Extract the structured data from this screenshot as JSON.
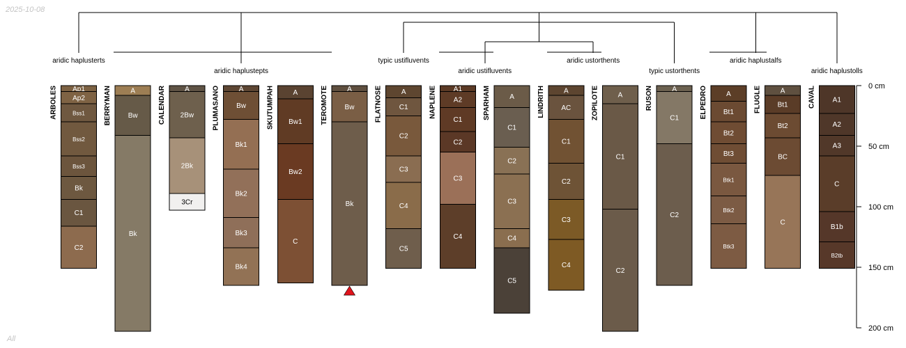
{
  "header": {
    "date": "2025-10-08"
  },
  "footer": {
    "subset": "All"
  },
  "chart_data": {
    "type": "soil-profile-sketch",
    "depth_units": "cm",
    "depth_axis": {
      "ticks": [
        0,
        50,
        100,
        150,
        200
      ],
      "labels": [
        "0 cm",
        "50 cm",
        "100 cm",
        "150 cm",
        "200 cm"
      ],
      "range": [
        0,
        200
      ]
    },
    "groups": [
      {
        "label": "aridic haplusterts",
        "profiles": [
          "ARBOLES"
        ]
      },
      {
        "label": "aridic haplustepts",
        "profiles": [
          "BERRYMAN",
          "CALENDAR",
          "PLUMASANO",
          "SKUTUMPAH",
          "TEROMOTE"
        ]
      },
      {
        "label": "typic ustifluvents",
        "profiles": [
          "FLATNOSE"
        ]
      },
      {
        "label": "aridic ustifluvents",
        "profiles": [
          "NAPLENE",
          "SPARHAM"
        ]
      },
      {
        "label": "aridic ustorthents",
        "profiles": [
          "LINDRITH",
          "ZOPILOTE"
        ]
      },
      {
        "label": "typic ustorthents",
        "profiles": [
          "RUSON"
        ]
      },
      {
        "label": "aridic haplustalfs",
        "profiles": [
          "ELPEDRO",
          "FLUGLE"
        ]
      },
      {
        "label": "aridic haplustolls",
        "profiles": [
          "CAVAL"
        ]
      }
    ],
    "profiles": [
      {
        "name": "ARBOLES",
        "horizons": [
          {
            "name": "Ap1",
            "top": 0,
            "bottom": 5,
            "color": "#7d6243",
            "small": false
          },
          {
            "name": "Ap2",
            "top": 5,
            "bottom": 15,
            "color": "#7f6344",
            "small": false
          },
          {
            "name": "Bss1",
            "top": 15,
            "bottom": 30,
            "color": "#6f5840",
            "small": true
          },
          {
            "name": "Bss2",
            "top": 30,
            "bottom": 58,
            "color": "#71593f",
            "small": true
          },
          {
            "name": "Bss3",
            "top": 58,
            "bottom": 75,
            "color": "#6c553d",
            "small": true
          },
          {
            "name": "Bk",
            "top": 75,
            "bottom": 94,
            "color": "#6d5840",
            "small": false
          },
          {
            "name": "C1",
            "top": 94,
            "bottom": 116,
            "color": "#6a5640",
            "small": false
          },
          {
            "name": "C2",
            "top": 116,
            "bottom": 151,
            "color": "#8d6b4e",
            "small": false
          }
        ]
      },
      {
        "name": "BERRYMAN",
        "horizons": [
          {
            "name": "A",
            "top": 0,
            "bottom": 8,
            "color": "#9d7e54",
            "small": false
          },
          {
            "name": "Bw",
            "top": 8,
            "bottom": 41,
            "color": "#665a48",
            "small": false
          },
          {
            "name": "Bk",
            "top": 41,
            "bottom": 203,
            "color": "#857a66",
            "small": false
          }
        ]
      },
      {
        "name": "CALENDAR",
        "horizons": [
          {
            "name": "A",
            "top": 0,
            "bottom": 5,
            "color": "#5f5345",
            "small": false
          },
          {
            "name": "2Bw",
            "top": 5,
            "bottom": 43,
            "color": "#6e604d",
            "small": false
          },
          {
            "name": "2Bk",
            "top": 43,
            "bottom": 89,
            "color": "#a79179",
            "small": false
          },
          {
            "name": "3Cr",
            "top": 89,
            "bottom": 103,
            "color": "#f1f0ef",
            "small": false
          }
        ]
      },
      {
        "name": "PLUMASANO",
        "horizons": [
          {
            "name": "A",
            "top": 0,
            "bottom": 5,
            "color": "#5d4633",
            "small": false
          },
          {
            "name": "Bw",
            "top": 5,
            "bottom": 28,
            "color": "#6e4f35",
            "small": false
          },
          {
            "name": "Bk1",
            "top": 28,
            "bottom": 69,
            "color": "#946f53",
            "small": false
          },
          {
            "name": "Bk2",
            "top": 69,
            "bottom": 109,
            "color": "#927059",
            "small": false
          },
          {
            "name": "Bk3",
            "top": 109,
            "bottom": 134,
            "color": "#8f6f59",
            "small": false
          },
          {
            "name": "Bk4",
            "top": 134,
            "bottom": 165,
            "color": "#927255",
            "small": false
          }
        ]
      },
      {
        "name": "SKUTUMPAH",
        "horizons": [
          {
            "name": "A",
            "top": 0,
            "bottom": 11,
            "color": "#5a4331",
            "small": false
          },
          {
            "name": "Bw1",
            "top": 11,
            "bottom": 48,
            "color": "#603b24",
            "small": false
          },
          {
            "name": "Bw2",
            "top": 48,
            "bottom": 94,
            "color": "#6a3a22",
            "small": false
          },
          {
            "name": "C",
            "top": 94,
            "bottom": 163,
            "color": "#7d5034",
            "small": false
          }
        ]
      },
      {
        "name": "TEROMOTE",
        "bottom_marker": true,
        "horizons": [
          {
            "name": "A",
            "top": 0,
            "bottom": 5,
            "color": "#5f4f3f",
            "small": false
          },
          {
            "name": "Bw",
            "top": 5,
            "bottom": 30,
            "color": "#7a5e45",
            "small": false
          },
          {
            "name": "Bk",
            "top": 30,
            "bottom": 165,
            "color": "#6e5d4b",
            "small": false
          }
        ]
      },
      {
        "name": "FLATNOSE",
        "horizons": [
          {
            "name": "A",
            "top": 0,
            "bottom": 10,
            "color": "#5e4630",
            "small": false
          },
          {
            "name": "C1",
            "top": 10,
            "bottom": 25,
            "color": "#6f563f",
            "small": false
          },
          {
            "name": "C2",
            "top": 25,
            "bottom": 58,
            "color": "#79593c",
            "small": false
          },
          {
            "name": "C3",
            "top": 58,
            "bottom": 80,
            "color": "#8a6d51",
            "small": false
          },
          {
            "name": "C4",
            "top": 80,
            "bottom": 118,
            "color": "#8a6c4a",
            "small": false
          },
          {
            "name": "C5",
            "top": 118,
            "bottom": 151,
            "color": "#6f5e4c",
            "small": false
          }
        ]
      },
      {
        "name": "NAPLENE",
        "horizons": [
          {
            "name": "A1",
            "top": 0,
            "bottom": 5,
            "color": "#5b3a25",
            "small": false
          },
          {
            "name": "A2",
            "top": 5,
            "bottom": 18,
            "color": "#5e3b26",
            "small": false
          },
          {
            "name": "C1",
            "top": 18,
            "bottom": 38,
            "color": "#5f3a25",
            "small": false
          },
          {
            "name": "C2",
            "top": 38,
            "bottom": 55,
            "color": "#5b3826",
            "small": false
          },
          {
            "name": "C3",
            "top": 55,
            "bottom": 98,
            "color": "#9b7058",
            "small": false
          },
          {
            "name": "C4",
            "top": 98,
            "bottom": 151,
            "color": "#5d3e29",
            "small": false
          }
        ]
      },
      {
        "name": "SPARHAM",
        "horizons": [
          {
            "name": "A",
            "top": 0,
            "bottom": 18,
            "color": "#6b5b48",
            "small": false
          },
          {
            "name": "C1",
            "top": 18,
            "bottom": 51,
            "color": "#6a5e50",
            "small": false
          },
          {
            "name": "C2",
            "top": 51,
            "bottom": 73,
            "color": "#897155",
            "small": false
          },
          {
            "name": "C3",
            "top": 73,
            "bottom": 118,
            "color": "#8b7052",
            "small": false
          },
          {
            "name": "C4",
            "top": 118,
            "bottom": 134,
            "color": "#8a6e4f",
            "small": false
          },
          {
            "name": "C5",
            "top": 134,
            "bottom": 188,
            "color": "#4b4138",
            "small": false
          }
        ]
      },
      {
        "name": "LINDRITH",
        "horizons": [
          {
            "name": "A",
            "top": 0,
            "bottom": 8,
            "color": "#5d4530",
            "small": false
          },
          {
            "name": "AC",
            "top": 8,
            "bottom": 28,
            "color": "#6a533e",
            "small": false
          },
          {
            "name": "C1",
            "top": 28,
            "bottom": 64,
            "color": "#715233",
            "small": false
          },
          {
            "name": "C2",
            "top": 64,
            "bottom": 94,
            "color": "#6e5336",
            "small": false
          },
          {
            "name": "C3",
            "top": 94,
            "bottom": 127,
            "color": "#7c5a26",
            "small": false
          },
          {
            "name": "C4",
            "top": 127,
            "bottom": 169,
            "color": "#7e5a24",
            "small": false
          }
        ]
      },
      {
        "name": "ZOPILOTE",
        "horizons": [
          {
            "name": "A",
            "top": 0,
            "bottom": 15,
            "color": "#6f5f4c",
            "small": false
          },
          {
            "name": "C1",
            "top": 15,
            "bottom": 102,
            "color": "#6a5947",
            "small": false
          },
          {
            "name": "C2",
            "top": 102,
            "bottom": 203,
            "color": "#6b5b4a",
            "small": false
          }
        ]
      },
      {
        "name": "RUSON",
        "horizons": [
          {
            "name": "A",
            "top": 0,
            "bottom": 5,
            "color": "#6c6150",
            "small": false
          },
          {
            "name": "C1",
            "top": 5,
            "bottom": 48,
            "color": "#847866",
            "small": false
          },
          {
            "name": "C2",
            "top": 48,
            "bottom": 165,
            "color": "#6c5d4d",
            "small": false
          }
        ]
      },
      {
        "name": "ELPEDRO",
        "horizons": [
          {
            "name": "A",
            "top": 0,
            "bottom": 13,
            "color": "#5c3e27",
            "small": false
          },
          {
            "name": "Bt1",
            "top": 13,
            "bottom": 30,
            "color": "#6b4a32",
            "small": false
          },
          {
            "name": "Bt2",
            "top": 30,
            "bottom": 48,
            "color": "#6f4c33",
            "small": false
          },
          {
            "name": "Bt3",
            "top": 48,
            "bottom": 64,
            "color": "#6f4d34",
            "small": false
          },
          {
            "name": "Btk1",
            "top": 64,
            "bottom": 91,
            "color": "#7a5840",
            "small": true
          },
          {
            "name": "Btk2",
            "top": 91,
            "bottom": 114,
            "color": "#7c5b44",
            "small": true
          },
          {
            "name": "Btk3",
            "top": 114,
            "bottom": 151,
            "color": "#7d5b43",
            "small": true
          }
        ]
      },
      {
        "name": "FLUGLE",
        "horizons": [
          {
            "name": "A",
            "top": 0,
            "bottom": 8,
            "color": "#5f5040",
            "small": false
          },
          {
            "name": "Bt1",
            "top": 8,
            "bottom": 23,
            "color": "#5a3c27",
            "small": false
          },
          {
            "name": "Bt2",
            "top": 23,
            "bottom": 43,
            "color": "#6c4b32",
            "small": false
          },
          {
            "name": "BC",
            "top": 43,
            "bottom": 74,
            "color": "#6c4b33",
            "small": false
          },
          {
            "name": "C",
            "top": 74,
            "bottom": 151,
            "color": "#977558",
            "small": false
          }
        ]
      },
      {
        "name": "CAVAL",
        "horizons": [
          {
            "name": "A1",
            "top": 0,
            "bottom": 23,
            "color": "#4e3628",
            "small": false
          },
          {
            "name": "A2",
            "top": 23,
            "bottom": 41,
            "color": "#4f3729",
            "small": false
          },
          {
            "name": "A3",
            "top": 41,
            "bottom": 58,
            "color": "#513829",
            "small": false
          },
          {
            "name": "C",
            "top": 58,
            "bottom": 104,
            "color": "#5a3d29",
            "small": false
          },
          {
            "name": "B1b",
            "top": 104,
            "bottom": 129,
            "color": "#553729",
            "small": false
          },
          {
            "name": "B2tb",
            "top": 129,
            "bottom": 151,
            "color": "#573829",
            "small": true
          }
        ]
      }
    ]
  }
}
